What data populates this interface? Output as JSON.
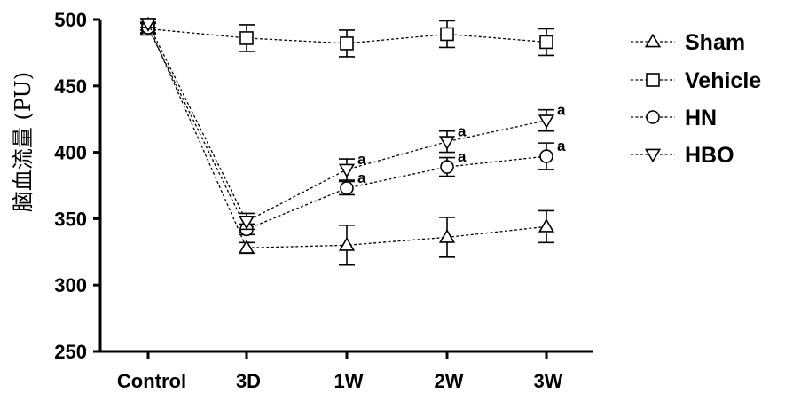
{
  "chart_data": {
    "type": "line",
    "ylabel": "脑血流量 (PU)",
    "xlabel": "",
    "categories": [
      "Control",
      "3D",
      "1W",
      "2W",
      "3W"
    ],
    "ylim": [
      250,
      500
    ],
    "yticks": [
      250,
      300,
      350,
      400,
      450,
      500
    ],
    "grid": false,
    "legend_position": "right",
    "colors": {
      "line": "#000000",
      "marker_fill": "#ffffff"
    },
    "series": [
      {
        "name": "Sham",
        "marker": "triangle-up",
        "values": [
          496,
          328,
          330,
          336,
          344
        ],
        "errors": [
          4,
          4,
          15,
          15,
          12
        ],
        "annotations": [
          "",
          "",
          "",
          "",
          ""
        ]
      },
      {
        "name": "Vehicle",
        "marker": "square",
        "values": [
          493,
          486,
          482,
          489,
          483
        ],
        "errors": [
          4,
          10,
          10,
          10,
          10
        ],
        "annotations": [
          "",
          "",
          "",
          "",
          ""
        ]
      },
      {
        "name": "HN",
        "marker": "circle",
        "values": [
          494,
          342,
          373,
          389,
          397
        ],
        "errors": [
          4,
          4,
          5,
          7,
          10
        ],
        "annotations": [
          "",
          "",
          "a",
          "a",
          "a"
        ]
      },
      {
        "name": "HBO",
        "marker": "triangle-down",
        "values": [
          497,
          348,
          387,
          408,
          424
        ],
        "errors": [
          3,
          6,
          8,
          8,
          8
        ],
        "annotations": [
          "",
          "",
          "a",
          "a",
          "a"
        ]
      }
    ]
  }
}
